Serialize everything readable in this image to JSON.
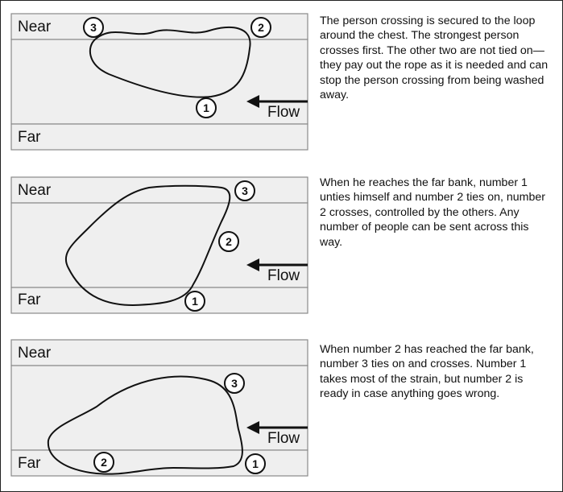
{
  "colors": {
    "bank": "#efefef",
    "water": "#efefef",
    "line": "#111111",
    "border": "#8a8a8a"
  },
  "panels": [
    {
      "near": "Near",
      "far": "Far",
      "flow": "Flow",
      "people": [
        "1",
        "2",
        "3"
      ],
      "text": "The person crossing is secured to the loop around the chest. The strongest person crosses first. The other two are not tied on— they pay out the rope as it is needed and can stop the person crossing from being washed away."
    },
    {
      "near": "Near",
      "far": "Far",
      "flow": "Flow",
      "people": [
        "1",
        "2",
        "3"
      ],
      "text": "When he reaches the far bank, number 1 unties himself and number 2 ties on, number 2 crosses, controlled by the others. Any number of people can be sent across this way."
    },
    {
      "near": "Near",
      "far": "Far",
      "flow": "Flow",
      "people": [
        "1",
        "2",
        "3"
      ],
      "text": "When number 2 has reached the far bank, number 3 ties on and crosses. Number 1 takes most of the strain, but number 2 is ready in case anything goes wrong."
    }
  ]
}
